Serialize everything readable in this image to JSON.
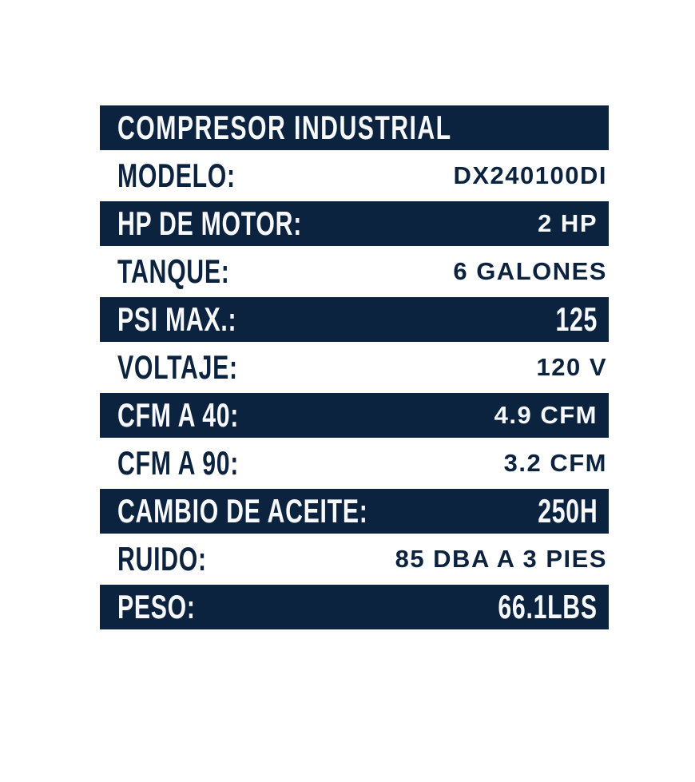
{
  "page": {
    "colors": {
      "navy": "#0c2340",
      "background": "#ffffff",
      "light_text": "#f7f9fc"
    }
  },
  "table": {
    "header": {
      "title": "COMPRESOR INDUSTRIAL"
    },
    "rows": [
      {
        "label": "MODELO:",
        "value": "DX240100DI",
        "shaded": false,
        "value_style": "bold"
      },
      {
        "label": "HP DE MOTOR:",
        "value": "2 HP",
        "shaded": true,
        "value_style": "bold"
      },
      {
        "label": "TANQUE:",
        "value": "6 GALONES",
        "shaded": false,
        "value_style": "bold"
      },
      {
        "label": "PSI MAX.:",
        "value": "125",
        "shaded": true,
        "value_style": "condensed"
      },
      {
        "label": "VOLTAJE:",
        "value": "120 V",
        "shaded": false,
        "value_style": "bold"
      },
      {
        "label": "CFM A 40:",
        "value": "4.9 CFM",
        "shaded": true,
        "value_style": "bold"
      },
      {
        "label": "CFM A 90:",
        "value": "3.2 CFM",
        "shaded": false,
        "value_style": "bold"
      },
      {
        "label": "CAMBIO DE ACEITE:",
        "value": "250H",
        "shaded": true,
        "value_style": "condensed"
      },
      {
        "label": "RUIDO:",
        "value": "85 DBA A 3 PIES",
        "shaded": false,
        "value_style": "bold"
      },
      {
        "label": "PESO:",
        "value": "66.1LBS",
        "shaded": true,
        "value_style": "condensed"
      }
    ]
  }
}
